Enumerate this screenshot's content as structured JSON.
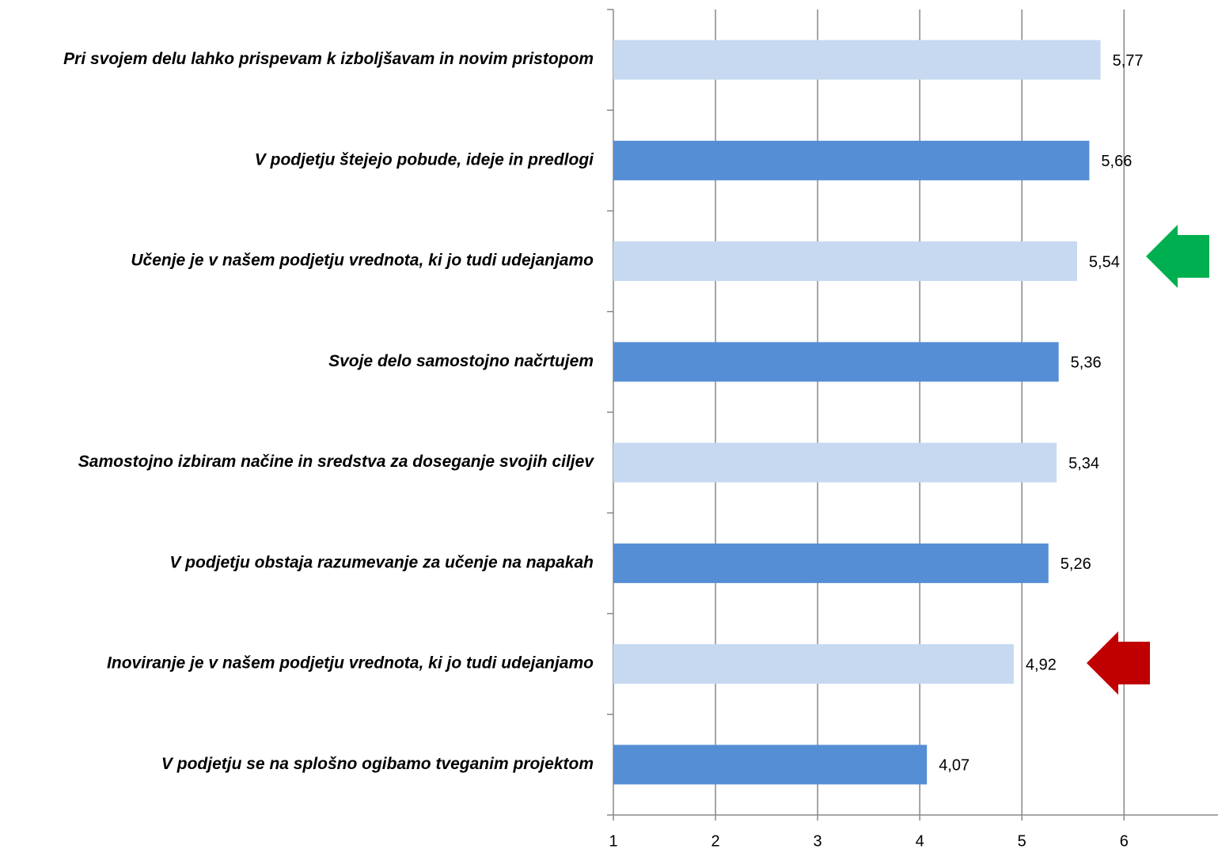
{
  "chart_data": {
    "type": "barh",
    "categories": [
      "Pri svojem delu lahko prispevam k izboljšavam in novim pristopom",
      "V podjetju štejejo pobude, ideje in predlogi",
      "Učenje je v našem podjetju vrednota, ki jo tudi udejanjamo",
      "Svoje delo samostojno načrtujem",
      "Samostojno izbiram načine in sredstva za doseganje svojih ciljev",
      "V podjetju obstaja razumevanje za učenje na napakah",
      "Inoviranje je v našem podjetju vrednota, ki jo tudi udejanjamo",
      "V podjetju se na splošno ogibamo tveganim projektom"
    ],
    "values": [
      5.77,
      5.66,
      5.54,
      5.36,
      5.34,
      5.26,
      4.92,
      4.07
    ],
    "value_labels": [
      "5,77",
      "5,66",
      "5,54",
      "5,36",
      "5,34",
      "5,26",
      "4,92",
      "4,07"
    ],
    "colors": [
      "#c6d9f1",
      "#558ed5",
      "#c6d9f1",
      "#558ed5",
      "#c6d9f1",
      "#558ed5",
      "#c6d9f1",
      "#558ed5"
    ],
    "xlim": [
      1,
      6.92
    ],
    "xticks": [
      1,
      2,
      3,
      4,
      5,
      6
    ],
    "grid": true
  }
}
